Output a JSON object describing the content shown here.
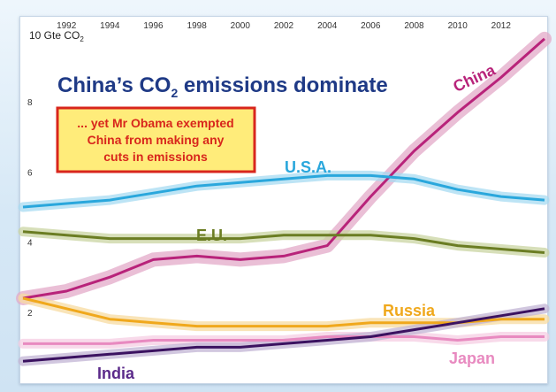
{
  "chart_data": {
    "type": "line",
    "title": "China's CO2 emissions dominate",
    "unit_label_prefix": "10 Gte CO",
    "unit_label_subscript": "2",
    "annotation": [
      "... yet Mr Obama exempted",
      "China from making any",
      "cuts in emissions"
    ],
    "x": [
      1990,
      1992,
      1994,
      1996,
      1998,
      2000,
      2002,
      2004,
      2006,
      2008,
      2010,
      2012,
      2014
    ],
    "x_ticks": [
      1992,
      1994,
      1996,
      1998,
      2000,
      2002,
      2004,
      2006,
      2008,
      2010,
      2012
    ],
    "y_ticks": [
      2,
      4,
      6,
      8
    ],
    "xlim": [
      1990,
      2014
    ],
    "ylim": [
      0,
      10
    ],
    "grid": false,
    "legend": "inline labels",
    "series": [
      {
        "name": "China",
        "color": "#b8237a",
        "band": "#e3a9c8",
        "values": [
          2.4,
          2.6,
          3.0,
          3.5,
          3.6,
          3.5,
          3.6,
          3.9,
          5.3,
          6.6,
          7.7,
          8.7,
          9.8
        ]
      },
      {
        "name": "U.S.A.",
        "color": "#2aa7dc",
        "band": "#a7dbf2",
        "values": [
          5.0,
          5.1,
          5.2,
          5.4,
          5.6,
          5.7,
          5.8,
          5.9,
          5.9,
          5.8,
          5.5,
          5.3,
          5.2
        ]
      },
      {
        "name": "E.U.",
        "color": "#6b7d23",
        "band": "#c9d4a2",
        "values": [
          4.3,
          4.2,
          4.1,
          4.1,
          4.1,
          4.1,
          4.2,
          4.2,
          4.2,
          4.1,
          3.9,
          3.8,
          3.7
        ]
      },
      {
        "name": "Russia",
        "color": "#f0a81c",
        "band": "#f7dba0",
        "values": [
          2.4,
          2.1,
          1.8,
          1.7,
          1.6,
          1.6,
          1.6,
          1.6,
          1.7,
          1.7,
          1.7,
          1.8,
          1.8
        ]
      },
      {
        "name": "Japan",
        "color": "#e88ac0",
        "band": "#f5cde3",
        "values": [
          1.1,
          1.1,
          1.1,
          1.2,
          1.2,
          1.2,
          1.2,
          1.3,
          1.3,
          1.3,
          1.2,
          1.3,
          1.3
        ]
      },
      {
        "name": "India",
        "color": "#3b1260",
        "band": "#c2b4d4",
        "values": [
          0.6,
          0.7,
          0.8,
          0.9,
          1.0,
          1.0,
          1.1,
          1.2,
          1.3,
          1.5,
          1.7,
          1.9,
          2.1
        ]
      }
    ]
  }
}
